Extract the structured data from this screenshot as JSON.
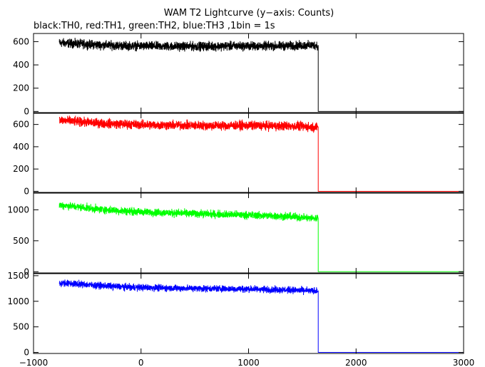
{
  "title": "WAM T2 Lightcurve (y−axis: Counts)",
  "subtitle": "black:TH0, red:TH1, green:TH2, blue:TH3 ,1bin = 1s",
  "chart_data": [
    {
      "type": "line",
      "panel": "TH0",
      "color": "#000000",
      "xlim": [
        -1000,
        3000
      ],
      "ylim": [
        -10,
        670
      ],
      "yticks": [
        0,
        200,
        400,
        600
      ],
      "xticks": [
        -1000,
        0,
        1000,
        2000,
        3000
      ],
      "series": [
        {
          "x": [
            -760,
            -600,
            -400,
            -200,
            0,
            200,
            400,
            600,
            800,
            1000,
            1200,
            1400,
            1640,
            1648,
            1660,
            3000
          ],
          "values": [
            590,
            582,
            572,
            566,
            562,
            560,
            559,
            560,
            562,
            562,
            562,
            564,
            570,
            0,
            0,
            0
          ],
          "noise": 28
        }
      ]
    },
    {
      "type": "line",
      "panel": "TH1",
      "color": "#ff0000",
      "xlim": [
        -1000,
        3000
      ],
      "ylim": [
        -10,
        700
      ],
      "yticks": [
        0,
        200,
        400,
        600
      ],
      "xticks": [
        -1000,
        0,
        1000,
        2000,
        3000
      ],
      "series": [
        {
          "x": [
            -760,
            -600,
            -400,
            -200,
            0,
            200,
            400,
            600,
            800,
            1000,
            1200,
            1400,
            1640,
            1648,
            1660,
            3000
          ],
          "values": [
            640,
            625,
            612,
            604,
            598,
            594,
            592,
            590,
            590,
            590,
            588,
            585,
            575,
            0,
            0,
            0
          ],
          "noise": 30
        }
      ]
    },
    {
      "type": "line",
      "panel": "TH2",
      "color": "#00ff00",
      "xlim": [
        -1000,
        3000
      ],
      "ylim": [
        -20,
        1270
      ],
      "yticks": [
        0,
        500,
        1000
      ],
      "xticks": [
        -1000,
        0,
        1000,
        2000,
        3000
      ],
      "series": [
        {
          "x": [
            -760,
            -600,
            -400,
            -200,
            0,
            200,
            400,
            600,
            800,
            1000,
            1200,
            1400,
            1640,
            1648,
            1660,
            3000
          ],
          "values": [
            1080,
            1050,
            1010,
            985,
            965,
            955,
            945,
            935,
            925,
            915,
            905,
            890,
            860,
            0,
            0,
            0
          ],
          "noise": 45
        }
      ]
    },
    {
      "type": "line",
      "panel": "TH3",
      "color": "#0000ff",
      "xlim": [
        -1000,
        3000
      ],
      "ylim": [
        -20,
        1540
      ],
      "yticks": [
        0,
        500,
        1000,
        1500
      ],
      "xticks": [
        -1000,
        0,
        1000,
        2000,
        3000
      ],
      "series": [
        {
          "x": [
            -760,
            -600,
            -400,
            -200,
            0,
            200,
            400,
            600,
            800,
            1000,
            1200,
            1400,
            1640,
            1648,
            1660,
            3000
          ],
          "values": [
            1360,
            1340,
            1310,
            1285,
            1270,
            1260,
            1255,
            1250,
            1245,
            1240,
            1230,
            1220,
            1200,
            0,
            0,
            0
          ],
          "noise": 48
        }
      ]
    }
  ]
}
